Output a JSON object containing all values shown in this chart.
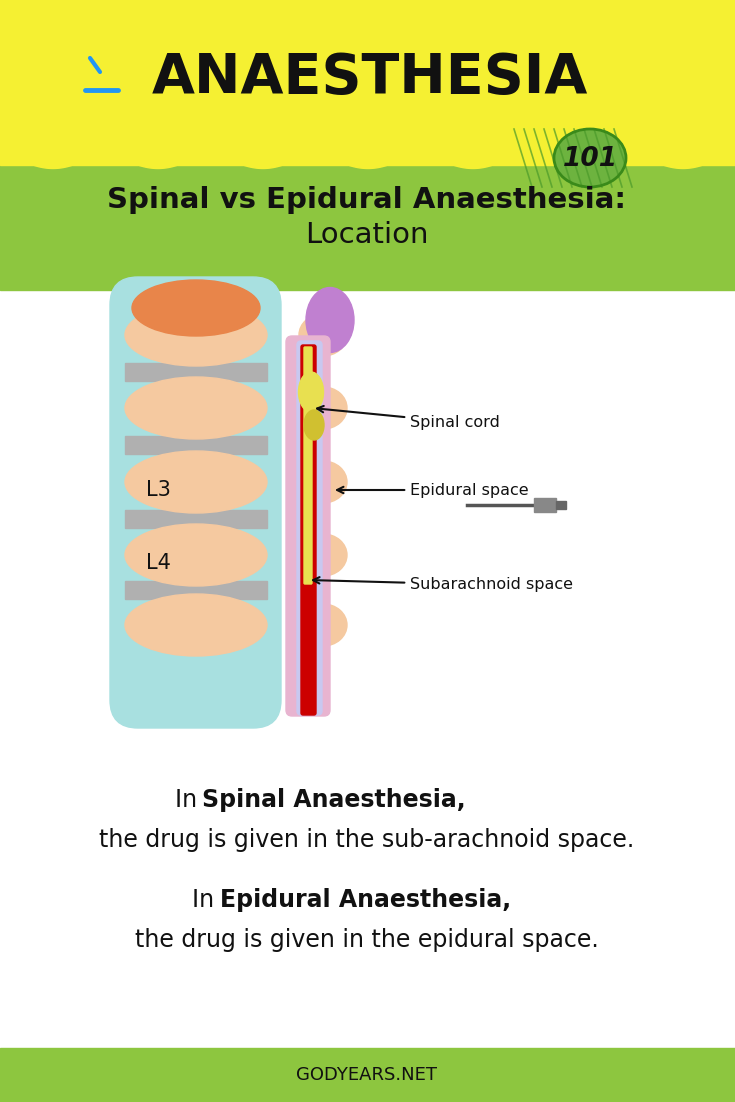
{
  "bg_color": "#ffffff",
  "header_bg": "#f5f032",
  "green_bg": "#8dc63f",
  "title_text": "ANAESTHESIA",
  "subtitle_line1": "Spinal vs Epidural Anaesthesia:",
  "subtitle_line2": "Location",
  "badge_text": "101",
  "footer_text": "GODYEARS.NET",
  "body_text_1b": "Spinal Anaesthesia",
  "body_text_2": "the drug is given in the sub-arachnoid space.",
  "body_text_3b": "Epidural Anaesthesia",
  "body_text_4": "the drug is given in the epidural space.",
  "label_spinal": "Spinal cord",
  "label_epidural": "Epidural space",
  "label_subarachnoid": "Subarachnoid space",
  "label_L3": "L3",
  "label_L4": "L4",
  "vertebra_color": "#f5c9a0",
  "disc_color": "#b0b0b0",
  "outer_color": "#a8e0e0",
  "epidural_color": "#e8b4d0",
  "dura_color": "#d0b8e8",
  "red_color": "#cc0000",
  "yellow_cord": "#e8e050",
  "orange_top": "#e8854a",
  "purple_top": "#c080d0"
}
